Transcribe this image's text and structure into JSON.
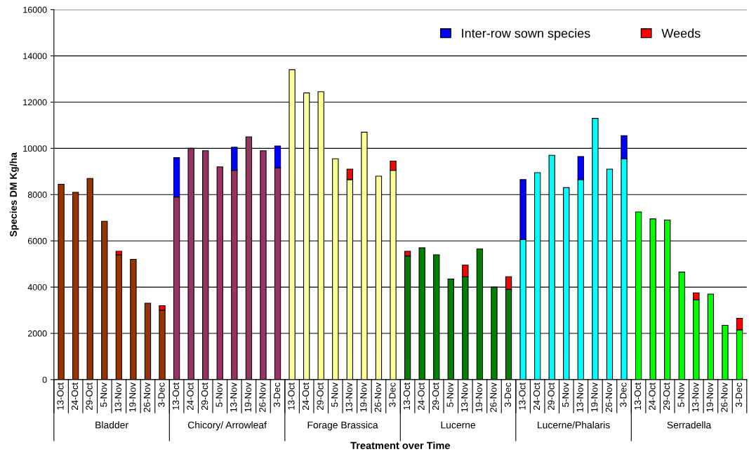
{
  "chart_data": {
    "type": "bar",
    "stacked": true,
    "xlabel": "Treatment over Time",
    "ylabel": "Species DM Kg/ha",
    "categories": [
      "13-Oct",
      "24-Oct",
      "29-Oct",
      "5-Nov",
      "13-Nov",
      "19-Nov",
      "26-Nov",
      "3-Dec",
      "13-Oct",
      "24-Oct",
      "29-Oct",
      "5-Nov",
      "13-Nov",
      "19-Nov",
      "26-Nov",
      "3-Dec",
      "13-Oct",
      "24-Oct",
      "29-Oct",
      "5-Nov",
      "13-Nov",
      "19-Nov",
      "26-Nov",
      "3-Dec",
      "13-Oct",
      "24-Oct",
      "29-Oct",
      "5-Nov",
      "13-Nov",
      "19-Nov",
      "26-Nov",
      "3-Dec",
      "13-Oct",
      "24-Oct",
      "29-Oct",
      "5-Nov",
      "13-Nov",
      "19-Nov",
      "26-Nov",
      "3-Dec",
      "13-Oct",
      "24-Oct",
      "29-Oct",
      "5-Nov",
      "13-Nov",
      "19-Nov",
      "26-Nov",
      "3-Dec"
    ],
    "annotations": [
      "Bladder",
      "Chicory/ Arrowleaf",
      "Forage Brassica",
      "Lucerne",
      "Lucerne/Phalaris",
      "Serradella"
    ],
    "series": [
      {
        "colors": [
          "#993300",
          "#993300",
          "#993300",
          "#993300",
          "#993300",
          "#993300",
          "#993300",
          "#993300",
          "#993366",
          "#993366",
          "#993366",
          "#993366",
          "#993366",
          "#993366",
          "#993366",
          "#993366",
          "#ffff99",
          "#ffff99",
          "#ffff99",
          "#ffff99",
          "#ffff99",
          "#ffff99",
          "#ffff99",
          "#ffff99",
          "#008000",
          "#008000",
          "#008000",
          "#008000",
          "#008000",
          "#008000",
          "#008000",
          "#008000",
          "#00ffff",
          "#00ffff",
          "#00ffff",
          "#00ffff",
          "#00ffff",
          "#00ffff",
          "#00ffff",
          "#00ffff",
          "#00ff00",
          "#00ff00",
          "#00ff00",
          "#00ff00",
          "#00ff00",
          "#00ff00",
          "#00ff00",
          "#00ff00"
        ],
        "values": [
          8450,
          8100,
          8700,
          6850,
          5400,
          5200,
          3300,
          3000,
          7900,
          10000,
          9900,
          9200,
          9050,
          10500,
          9900,
          9150,
          13400,
          12400,
          12450,
          9550,
          8650,
          10700,
          8800,
          9050,
          5350,
          5700,
          5400,
          4350,
          4450,
          5650,
          4000,
          3900,
          6050,
          8950,
          9700,
          8300,
          8650,
          11300,
          9100,
          9550,
          7250,
          6950,
          6900,
          4650,
          3450,
          3700,
          2350,
          2150
        ]
      },
      {
        "name": "Inter-row sown species",
        "color": "#0000ff",
        "values": [
          null,
          null,
          null,
          null,
          null,
          null,
          null,
          null,
          1700,
          null,
          null,
          null,
          1000,
          null,
          null,
          950,
          null,
          null,
          null,
          null,
          null,
          null,
          null,
          null,
          null,
          null,
          null,
          null,
          null,
          null,
          null,
          null,
          2600,
          null,
          null,
          null,
          1000,
          null,
          null,
          1000,
          null,
          null,
          null,
          null,
          null,
          null,
          null,
          null
        ]
      },
      {
        "name": "Weeds",
        "color": "#ff0000",
        "values": [
          null,
          null,
          null,
          null,
          150,
          null,
          null,
          200,
          null,
          null,
          null,
          null,
          null,
          null,
          null,
          null,
          null,
          null,
          null,
          null,
          450,
          null,
          null,
          400,
          200,
          null,
          null,
          null,
          500,
          null,
          null,
          550,
          null,
          null,
          null,
          null,
          null,
          null,
          null,
          null,
          null,
          null,
          null,
          null,
          300,
          null,
          null,
          500
        ]
      }
    ],
    "ylim": [
      0,
      16000
    ],
    "yticks": [
      0,
      2000,
      4000,
      6000,
      8000,
      10000,
      12000,
      14000,
      16000
    ],
    "grid": "y",
    "legend": "top right"
  }
}
